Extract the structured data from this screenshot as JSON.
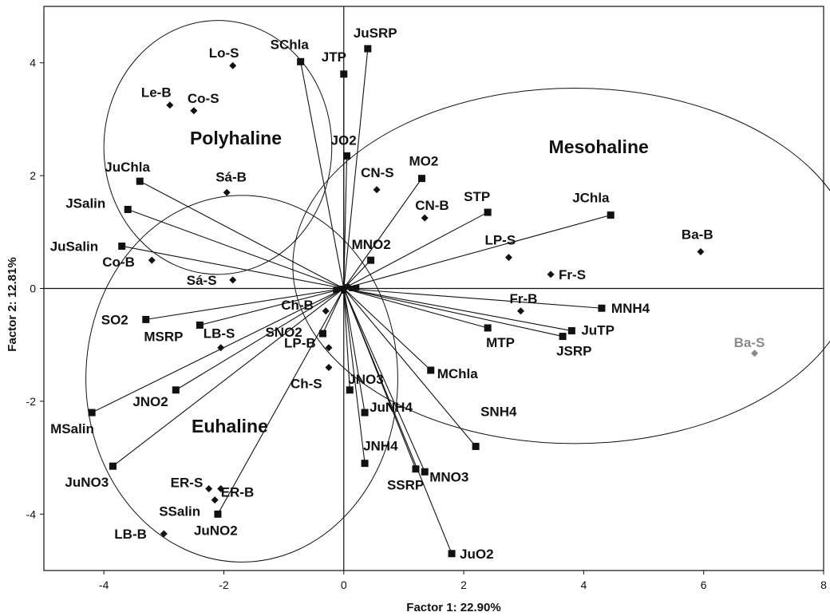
{
  "chart_data": {
    "type": "scatter",
    "title": "",
    "xlabel": "Factor 1: 22.90%",
    "ylabel": "Factor 2: 12.81%",
    "xlim": [
      -5,
      8
    ],
    "ylim": [
      -5,
      5
    ],
    "xticks": [
      "-4",
      "-2",
      "0",
      "2",
      "4",
      "6",
      "8"
    ],
    "yticks": [
      "4",
      "2",
      "0",
      "-2",
      "-4"
    ],
    "grid": false,
    "legend": "none",
    "regions": [
      {
        "name": "Polyhaline",
        "center": [
          -2.1,
          2.5
        ],
        "radii": [
          1.9,
          2.25
        ]
      },
      {
        "name": "Mesohaline",
        "center": [
          3.85,
          0.4
        ],
        "radii": [
          4.7,
          3.15
        ]
      },
      {
        "name": "Euhaline",
        "center": [
          -1.7,
          -1.6
        ],
        "radii": [
          2.6,
          3.25
        ]
      }
    ],
    "variables": [
      {
        "label": "SChla",
        "x": -0.72,
        "y": 4.02
      },
      {
        "label": "JuSRP",
        "x": 0.4,
        "y": 4.25
      },
      {
        "label": "JTP",
        "x": 0.0,
        "y": 3.8
      },
      {
        "label": "JO2",
        "x": 0.05,
        "y": 2.35
      },
      {
        "label": "MO2",
        "x": 1.3,
        "y": 1.95
      },
      {
        "label": "STP",
        "x": 2.4,
        "y": 1.35
      },
      {
        "label": "JChla",
        "x": 4.45,
        "y": 1.3
      },
      {
        "label": "MNO2",
        "x": 0.45,
        "y": 0.5
      },
      {
        "label": "MNH4",
        "x": 4.3,
        "y": -0.35
      },
      {
        "label": "JuTP",
        "x": 3.8,
        "y": -0.75
      },
      {
        "label": "JSRP",
        "x": 3.65,
        "y": -0.85
      },
      {
        "label": "MTP",
        "x": 2.4,
        "y": -0.7
      },
      {
        "label": "MChla",
        "x": 1.45,
        "y": -1.45
      },
      {
        "label": "SNH4",
        "x": 2.2,
        "y": -2.8
      },
      {
        "label": "JNO3",
        "x": 0.1,
        "y": -1.8
      },
      {
        "label": "JuNH4",
        "x": 0.35,
        "y": -2.2
      },
      {
        "label": "JNH4",
        "x": 0.35,
        "y": -3.1
      },
      {
        "label": "MNO3",
        "x": 1.35,
        "y": -3.25
      },
      {
        "label": "SSRP",
        "x": 1.2,
        "y": -3.2
      },
      {
        "label": "JuO2",
        "x": 1.8,
        "y": -4.7
      },
      {
        "label": "JuChla",
        "x": -3.4,
        "y": 1.9
      },
      {
        "label": "JSalin",
        "x": -3.6,
        "y": 1.4
      },
      {
        "label": "JuSalin",
        "x": -3.7,
        "y": 0.75
      },
      {
        "label": "SO2",
        "x": -3.3,
        "y": -0.55
      },
      {
        "label": "MSRP",
        "x": -2.4,
        "y": -0.65
      },
      {
        "label": "SNO2",
        "x": -0.35,
        "y": -0.8
      },
      {
        "label": "JNO2",
        "x": -2.8,
        "y": -1.8
      },
      {
        "label": "MSalin",
        "x": -4.2,
        "y": -2.2
      },
      {
        "label": "JuNO3",
        "x": -3.85,
        "y": -3.15
      },
      {
        "label": "JuNO2",
        "x": -2.1,
        "y": -4.0
      }
    ],
    "sites": [
      {
        "label": "Lo-S",
        "x": -1.85,
        "y": 3.95
      },
      {
        "label": "Le-B",
        "x": -2.9,
        "y": 3.25
      },
      {
        "label": "Co-S",
        "x": -2.5,
        "y": 3.15
      },
      {
        "label": "Sá-B",
        "x": -1.95,
        "y": 1.7
      },
      {
        "label": "CN-S",
        "x": 0.55,
        "y": 1.75
      },
      {
        "label": "CN-B",
        "x": 1.35,
        "y": 1.25
      },
      {
        "label": "LP-S",
        "x": 2.75,
        "y": 0.55
      },
      {
        "label": "Ba-B",
        "x": 5.95,
        "y": 0.65
      },
      {
        "label": "Fr-S",
        "x": 3.45,
        "y": 0.25
      },
      {
        "label": "Fr-B",
        "x": 2.95,
        "y": -0.4
      },
      {
        "label": "Ba-S",
        "x": 6.85,
        "y": -1.15,
        "color": "#8a8a8a"
      },
      {
        "label": "Co-B",
        "x": -3.2,
        "y": 0.5
      },
      {
        "label": "Sá-S",
        "x": -1.85,
        "y": 0.15
      },
      {
        "label": "Ch-B",
        "x": -0.3,
        "y": -0.4
      },
      {
        "label": "LB-S",
        "x": -2.05,
        "y": -1.05
      },
      {
        "label": "LP-B",
        "x": -0.25,
        "y": -1.05
      },
      {
        "label": "Ch-S",
        "x": -0.25,
        "y": -1.4
      },
      {
        "label": "ER-S",
        "x": -2.25,
        "y": -3.55
      },
      {
        "label": "ER-B",
        "x": -2.05,
        "y": -3.55
      },
      {
        "label": "SSalin",
        "x": -2.15,
        "y": -3.75
      },
      {
        "label": "LB-B",
        "x": -3.0,
        "y": -4.35
      }
    ]
  }
}
